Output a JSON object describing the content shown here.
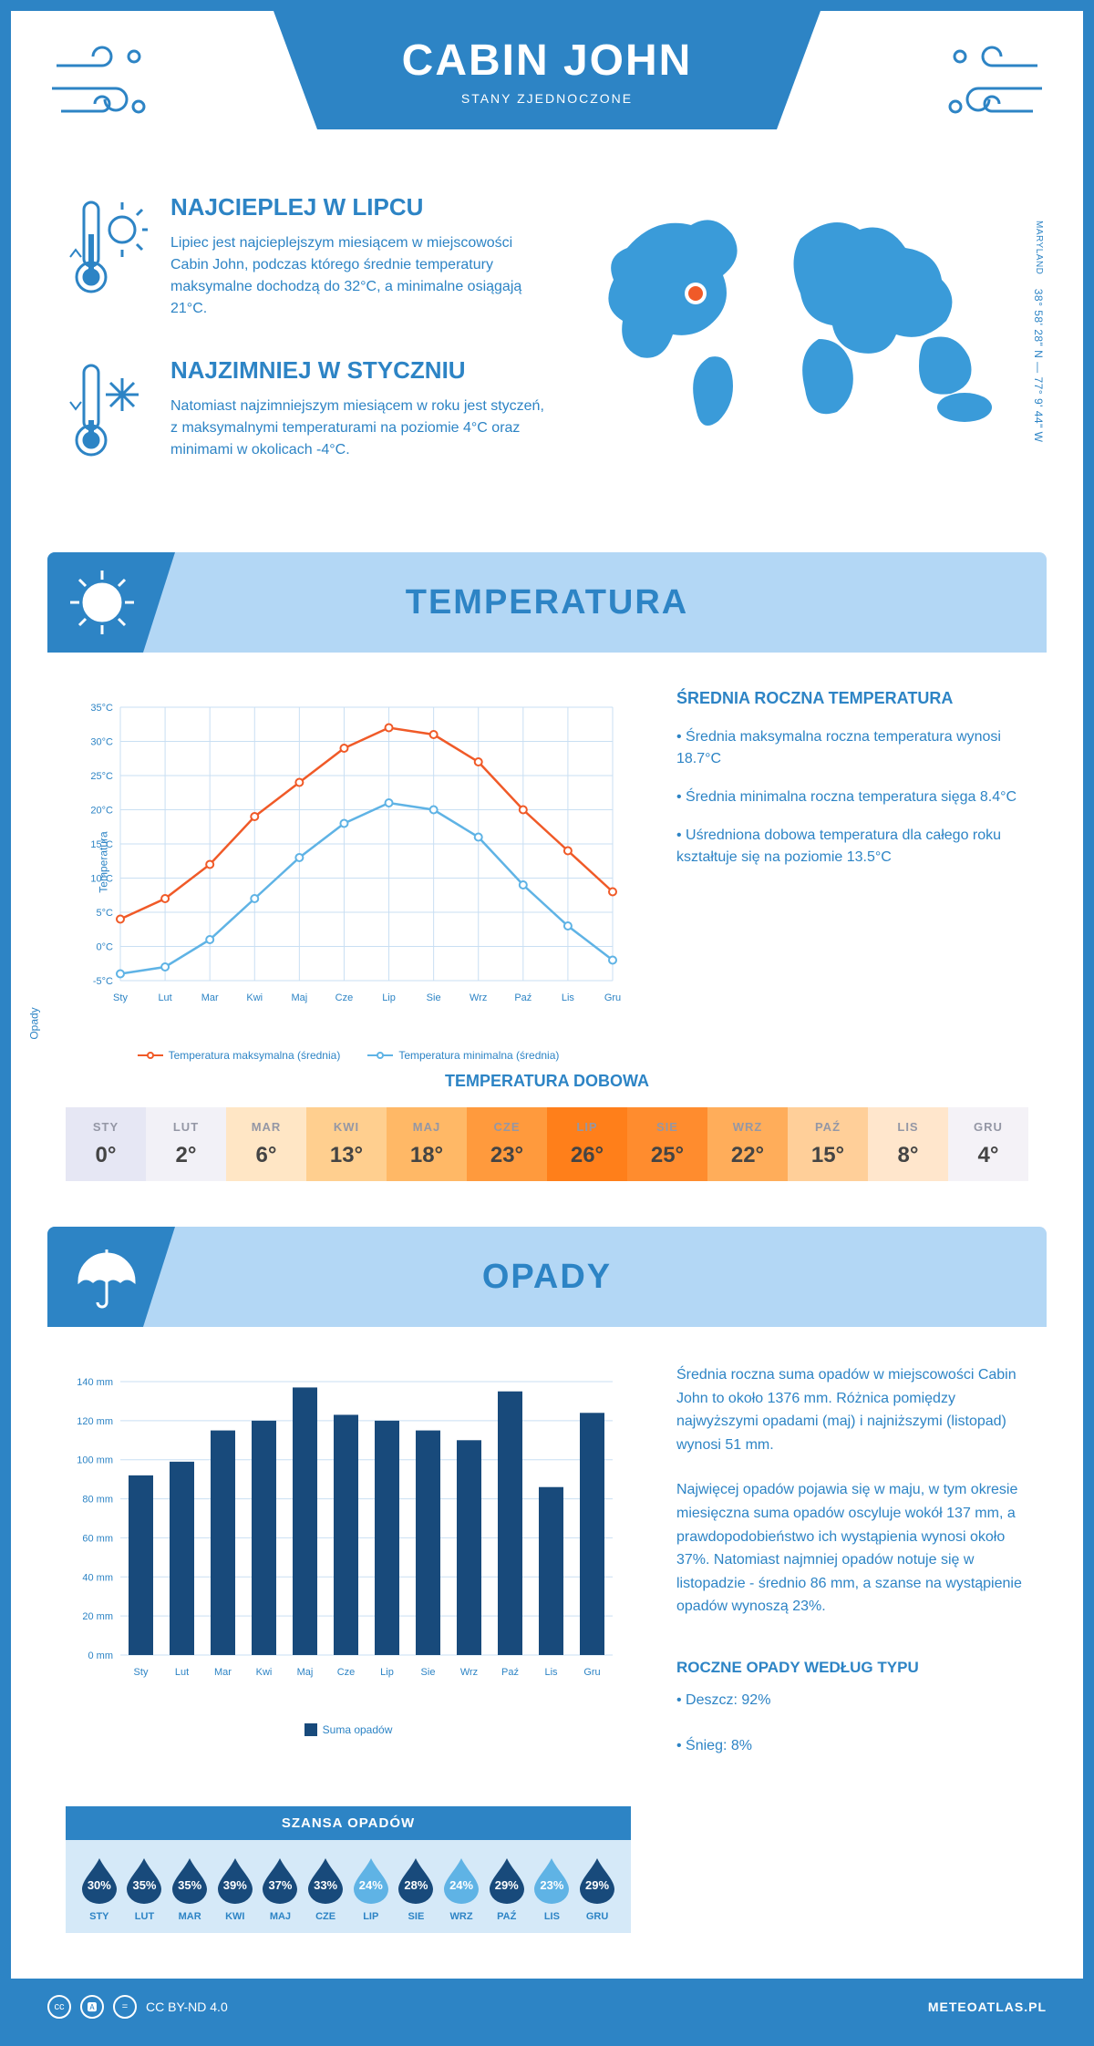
{
  "header": {
    "title": "CABIN JOHN",
    "subtitle": "STANY ZJEDNOCZONE"
  },
  "coords": {
    "text": "38° 58' 28\" N — 77° 9' 44\" W",
    "state": "MARYLAND"
  },
  "warmest": {
    "title": "NAJCIEPLEJ W LIPCU",
    "text": "Lipiec jest najcieplejszym miesiącem w miejscowości Cabin John, podczas którego średnie temperatury maksymalne dochodzą do 32°C, a minimalne osiągają 21°C."
  },
  "coldest": {
    "title": "NAJZIMNIEJ W STYCZNIU",
    "text": "Natomiast najzimniejszym miesiącem w roku jest styczeń, z maksymalnymi temperaturami na poziomie 4°C oraz minimami w okolicach -4°C."
  },
  "temperature": {
    "section_title": "TEMPERATURA",
    "info_title": "ŚREDNIA ROCZNA TEMPERATURA",
    "bullet1": "• Średnia maksymalna roczna temperatura wynosi 18.7°C",
    "bullet2": "• Średnia minimalna roczna temperatura sięga 8.4°C",
    "bullet3": "• Uśredniona dobowa temperatura dla całego roku kształtuje się na poziomie 13.5°C",
    "chart": {
      "type": "line",
      "months": [
        "Sty",
        "Lut",
        "Mar",
        "Kwi",
        "Maj",
        "Cze",
        "Lip",
        "Sie",
        "Wrz",
        "Paź",
        "Lis",
        "Gru"
      ],
      "ylim": [
        -5,
        35
      ],
      "ytick_step": 5,
      "ylabel": "Temperatura",
      "series": [
        {
          "name": "Temperatura maksymalna (średnia)",
          "color": "#f05a28",
          "values": [
            4,
            7,
            12,
            19,
            24,
            29,
            32,
            31,
            27,
            20,
            14,
            8
          ]
        },
        {
          "name": "Temperatura minimalna (średnia)",
          "color": "#5fb3e5",
          "values": [
            -4,
            -3,
            1,
            7,
            13,
            18,
            21,
            20,
            16,
            9,
            3,
            -2
          ]
        }
      ],
      "legend_max": "Temperatura maksymalna (średnia)",
      "legend_min": "Temperatura minimalna (średnia)",
      "grid_color": "#c9dff3",
      "bg": "#ffffff"
    },
    "daily": {
      "title": "TEMPERATURA DOBOWA",
      "months": [
        "STY",
        "LUT",
        "MAR",
        "KWI",
        "MAJ",
        "CZE",
        "LIP",
        "SIE",
        "WRZ",
        "PAŹ",
        "LIS",
        "GRU"
      ],
      "values": [
        "0°",
        "2°",
        "6°",
        "13°",
        "18°",
        "23°",
        "26°",
        "25°",
        "22°",
        "15°",
        "8°",
        "4°"
      ],
      "colors": [
        "#e6e7f4",
        "#f2f1f7",
        "#ffe6c5",
        "#ffcf8f",
        "#ffb866",
        "#ff9a3d",
        "#ff7f1a",
        "#ff8c2e",
        "#ffad5a",
        "#ffcf99",
        "#ffe6cc",
        "#f4f2f7"
      ]
    }
  },
  "precipitation": {
    "section_title": "OPADY",
    "para1": "Średnia roczna suma opadów w miejscowości Cabin John to około 1376 mm. Różnica pomiędzy najwyższymi opadami (maj) i najniższymi (listopad) wynosi 51 mm.",
    "para2": "Najwięcej opadów pojawia się w maju, w tym okresie miesięczna suma opadów oscyluje wokół 137 mm, a prawdopodobieństwo ich wystąpienia wynosi około 37%. Natomiast najmniej opadów notuje się w listopadzie - średnio 86 mm, a szanse na wystąpienie opadów wynoszą 23%.",
    "chart": {
      "type": "bar",
      "months": [
        "Sty",
        "Lut",
        "Mar",
        "Kwi",
        "Maj",
        "Cze",
        "Lip",
        "Sie",
        "Wrz",
        "Paź",
        "Lis",
        "Gru"
      ],
      "values": [
        92,
        99,
        115,
        120,
        137,
        123,
        120,
        115,
        110,
        135,
        86,
        124
      ],
      "ylim": [
        0,
        140
      ],
      "ytick_step": 20,
      "ylabel": "Opady",
      "bar_color": "#184a7b",
      "legend": "Suma opadów",
      "grid_color": "#c9dff3"
    },
    "drops": {
      "title": "SZANSA OPADÓW",
      "months": [
        "STY",
        "LUT",
        "MAR",
        "KWI",
        "MAJ",
        "CZE",
        "LIP",
        "SIE",
        "WRZ",
        "PAŹ",
        "LIS",
        "GRU"
      ],
      "values": [
        "30%",
        "35%",
        "35%",
        "39%",
        "37%",
        "33%",
        "24%",
        "28%",
        "24%",
        "29%",
        "23%",
        "29%"
      ],
      "colors": [
        "#184a7b",
        "#184a7b",
        "#184a7b",
        "#184a7b",
        "#184a7b",
        "#184a7b",
        "#5fb3e5",
        "#184a7b",
        "#5fb3e5",
        "#184a7b",
        "#5fb3e5",
        "#184a7b"
      ]
    },
    "type": {
      "title": "ROCZNE OPADY WEDŁUG TYPU",
      "rain": "• Deszcz: 92%",
      "snow": "• Śnieg: 8%"
    }
  },
  "footer": {
    "license": "CC BY-ND 4.0",
    "site": "METEOATLAS.PL"
  },
  "colors": {
    "primary": "#2d84c5",
    "light": "#b3d7f5",
    "dark": "#184a7b"
  }
}
